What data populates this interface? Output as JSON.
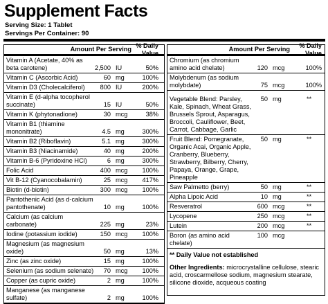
{
  "header": {
    "title": "Supplement Facts",
    "serving_size": "Serving Size: 1 Tablet",
    "servings_per_container": "Servings Per Container: 90"
  },
  "left": {
    "amount_header": "Amount Per Serving",
    "dv_header": "% Daily Value",
    "rows": [
      {
        "name": "Vitamin A (Acetate, 40% as beta carotene)",
        "amount": "2,500",
        "unit": "IU",
        "dv": "50%"
      },
      {
        "name": "Vitamin C (Ascorbic Acid)",
        "amount": "60",
        "unit": "mg",
        "dv": "100%"
      },
      {
        "name": "Vitamin D3 (Cholecalciferol)",
        "amount": "800",
        "unit": "IU",
        "dv": "200%"
      },
      {
        "name": "Vitamin E (d-alpha tocopherol succinate)",
        "amount": "15",
        "unit": "IU",
        "dv": "50%"
      },
      {
        "name": "Vitamin K (phytonadione)",
        "amount": "30",
        "unit": "mcg",
        "dv": "38%"
      },
      {
        "name": "Vitamin B1 (thiamine mononitrate)",
        "amount": "4.5",
        "unit": "mg",
        "dv": "300%"
      },
      {
        "name": "Vitamin B2 (Riboflavin)",
        "amount": "5.1",
        "unit": "mg",
        "dv": "300%"
      },
      {
        "name": "Vitamin B3 (Niacinamide)",
        "amount": "40",
        "unit": "mg",
        "dv": "200%"
      },
      {
        "name": "Vitamin B-6 (Pyridoxine HCl)",
        "amount": "6",
        "unit": "mg",
        "dv": "300%"
      },
      {
        "name": "Folic Acid",
        "amount": "400",
        "unit": "mcg",
        "dv": "100%"
      },
      {
        "name": "Vit B-12 (Cyanocobalamin)",
        "amount": "25",
        "unit": "mcg",
        "dv": "417%"
      },
      {
        "name": "Biotin (d-biotin)",
        "amount": "300",
        "unit": "mcg",
        "dv": "100%"
      },
      {
        "name": "Pantothenic Acid (as d-calcium pantothenate)",
        "amount": "10",
        "unit": "mg",
        "dv": "100%"
      },
      {
        "name": "Calcium (as calcium carbonate)",
        "amount": "225",
        "unit": "mg",
        "dv": "23%"
      },
      {
        "name": "Iodine (potassium iodide)",
        "amount": "150",
        "unit": "mcg",
        "dv": "100%"
      },
      {
        "name": "Magnesium (as magnesium oxide)",
        "amount": "50",
        "unit": "mg",
        "dv": "13%"
      },
      {
        "name": "Zinc (as zinc oxide)",
        "amount": "15",
        "unit": "mg",
        "dv": "100%"
      },
      {
        "name": "Selenium (as sodium selenate)",
        "amount": "70",
        "unit": "mcg",
        "dv": "100%"
      },
      {
        "name": "Copper (as cupric oxide)",
        "amount": "2",
        "unit": "mg",
        "dv": "100%"
      },
      {
        "name": "Manganese (as manganese sulfate)",
        "amount": "2",
        "unit": "mg",
        "dv": "100%"
      }
    ]
  },
  "right": {
    "amount_header": "Amount Per Serving",
    "dv_header": "% Daily Value",
    "rows": [
      {
        "name": "Chromium (as chromium amino acid chelate)",
        "amount": "120",
        "unit": "mcg",
        "dv": "100%"
      },
      {
        "name": "Molybdenum (as sodium molybdate)",
        "amount": "75",
        "unit": "mcg",
        "dv": "100%"
      },
      {
        "name": "Vegetable Blend: Parsley, Kale, Spinach, Wheat Grass, Brussels Sprout, Asparagus, Broccoli, Cauliflower, Beet, Carrot, Cabbage, Garlic",
        "amount": "50",
        "unit": "mg",
        "dv": "**"
      },
      {
        "name": "Fruit Blend: Pomegranate, Organic Acai, Organic Apple, Cranberry, Blueberry, Strawberry, Bilberry, Cherry, Papaya, Orange, Grape, Pineapple",
        "amount": "50",
        "unit": "mg",
        "dv": "**"
      },
      {
        "name": "Saw Palmetto (berry)",
        "amount": "50",
        "unit": "mg",
        "dv": "**"
      },
      {
        "name": "Alpha Lipoic Acid",
        "amount": "10",
        "unit": "mg",
        "dv": "**"
      },
      {
        "name": "Resveratrol",
        "amount": "600",
        "unit": "mcg",
        "dv": "**"
      },
      {
        "name": "Lycopene",
        "amount": "250",
        "unit": "mcg",
        "dv": "**"
      },
      {
        "name": "Lutein",
        "amount": "200",
        "unit": "mcg",
        "dv": "**"
      },
      {
        "name": "Boron (as amino acid chelate)",
        "amount": "100",
        "unit": "mcg"
      }
    ],
    "footnote": "** Daily Value not established",
    "other_label": "Other Ingredients:",
    "other_text": "microcrystalline cellulose, stearic acid, croscarmellose sodium, magnesium stearate, silicone dioxide, acqueous coating"
  }
}
